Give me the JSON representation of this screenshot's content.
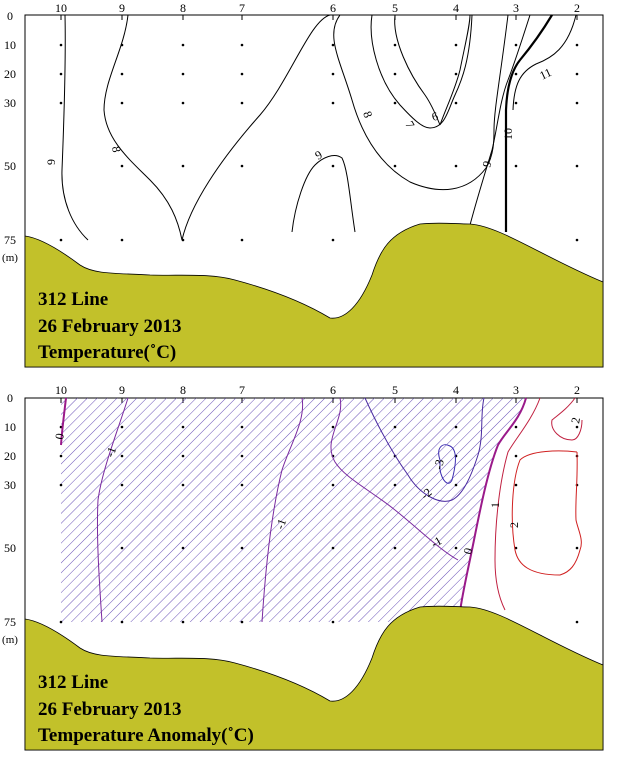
{
  "chart_data": [
    {
      "type": "contour",
      "variable": "Temperature",
      "title_lines": [
        "312 Line",
        "26 February 2013",
        "Temperature(˚C)"
      ],
      "stations": [
        "10",
        "9",
        "8",
        "7",
        "6",
        "5",
        "4",
        "3",
        "2"
      ],
      "depth_ticks": [
        "0",
        "10",
        "20",
        "30",
        "50",
        "75"
      ],
      "depth_unit": "(m)",
      "contour_labels": [
        "6",
        "7",
        "8",
        "8",
        "9",
        "9",
        "9",
        "10",
        "11"
      ],
      "colors": {
        "land": "#c2c12a",
        "contour": "#000000"
      }
    },
    {
      "type": "contour",
      "variable": "Temperature Anomaly",
      "title_lines": [
        "312 Line",
        "26 February 2013",
        "Temperature Anomaly(˚C)"
      ],
      "stations": [
        "10",
        "9",
        "8",
        "7",
        "6",
        "5",
        "4",
        "3",
        "2"
      ],
      "depth_ticks": [
        "0",
        "10",
        "20",
        "30",
        "50",
        "75"
      ],
      "depth_unit": "(m)",
      "contour_labels": [
        "0",
        "-1",
        "-1",
        "-1",
        "-2",
        "-3",
        "0",
        "1",
        "2",
        "2"
      ],
      "colors": {
        "land": "#c2c12a",
        "negative_hatch": "#5a3fb0",
        "positive": "#d02020",
        "zero": "#9a1a8a"
      }
    }
  ]
}
